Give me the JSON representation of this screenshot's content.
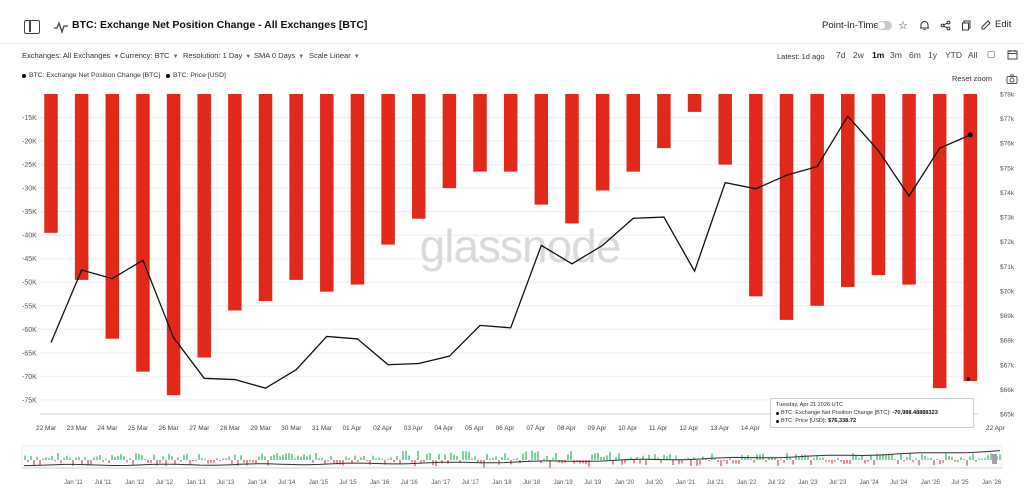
{
  "header": {
    "title": "BTC: Exchange Net Position Change - All Exchanges [BTC]",
    "point_in_time_label": "Point-In-Time",
    "edit_label": "Edit"
  },
  "controls": {
    "exchanges": "Exchanges: All Exchanges",
    "currency": "Currency: BTC",
    "resolution": "Resolution: 1 Day",
    "sma": "SMA 0 Days",
    "scale": "Scale Linear",
    "latest": "Latest: 1d ago",
    "ranges": [
      "7d",
      "2w",
      "1m",
      "3m",
      "6m",
      "1y",
      "YTD",
      "All"
    ],
    "active_range": "1m"
  },
  "legend": {
    "series1": "BTC: Exchange Net Position Change [BTC]",
    "series2": "BTC: Price [USD]"
  },
  "reset_zoom": "Reset zoom",
  "watermark": "glassnode",
  "tooltip": {
    "date": "Tuesday, Apr 21 2026 UTC",
    "row1_label": "BTC: Exchange Net Position Change [BTC]:",
    "row1_value": "-70,988.48888323",
    "row2_label": "BTC: Price [USD]:",
    "row2_value": "$76,338.72"
  },
  "colors": {
    "bar": "#e0291b",
    "line": "#111111",
    "grid": "#eceef1",
    "navigator_pos": "#7ed39a",
    "navigator_neg": "#f08a8a"
  },
  "chart_data": {
    "type": "bar",
    "categories": [
      "22 Mar",
      "23 Mar",
      "24 Mar",
      "25 Mar",
      "26 Mar",
      "27 Mar",
      "28 Mar",
      "29 Mar",
      "30 Mar",
      "31 Mar",
      "01 Apr",
      "02 Apr",
      "03 Apr",
      "04 Apr",
      "05 Apr",
      "06 Apr",
      "07 Apr",
      "08 Apr",
      "09 Apr",
      "10 Apr",
      "11 Apr",
      "12 Apr",
      "13 Apr",
      "14 Apr",
      "15 Apr",
      "16 Apr",
      "17 Apr",
      "18 Apr",
      "19 Apr",
      "20 Apr",
      "21 Apr",
      "22 Apr"
    ],
    "x_tick_labels": [
      "22 Mar",
      "23 Mar",
      "24 Mar",
      "25 Mar",
      "26 Mar",
      "27 Mar",
      "28 Mar",
      "29 Mar",
      "30 Mar",
      "31 Mar",
      "01 Apr",
      "02 Apr",
      "03 Apr",
      "04 Apr",
      "05 Apr",
      "06 Apr",
      "07 Apr",
      "08 Apr",
      "09 Apr",
      "10 Apr",
      "11 Apr",
      "12 Apr",
      "13 Apr",
      "14 Apr",
      "",
      "",
      "",
      "",
      "",
      "",
      "",
      "22 Apr"
    ],
    "series": [
      {
        "name": "BTC: Exchange Net Position Change [BTC]",
        "type": "bar",
        "axis": "left",
        "values": [
          -39.5,
          -49.5,
          -62,
          -69,
          -74,
          -66,
          -56,
          -54,
          -49.5,
          -52,
          -50.5,
          -42,
          -36.5,
          -30,
          -26.5,
          -26.5,
          -33.5,
          -37.5,
          -30.5,
          -26.5,
          -21.5,
          -13.8,
          -25,
          -53,
          -58,
          -55,
          -51,
          -48.5,
          -50.5,
          -72.5,
          -71,
          null
        ]
      },
      {
        "name": "BTC: Price [USD]",
        "type": "line",
        "axis": "right",
        "values": [
          67900,
          70850,
          70500,
          71250,
          68100,
          66450,
          66400,
          66050,
          66800,
          68150,
          68050,
          67000,
          67050,
          67350,
          68600,
          68500,
          71850,
          71100,
          71850,
          72950,
          73000,
          70800,
          74400,
          74150,
          74700,
          75050,
          77100,
          75700,
          73850,
          75800,
          76338.72,
          null
        ]
      }
    ],
    "y_left": {
      "label": "",
      "ticks": [
        "-15K",
        "-20K",
        "-25K",
        "-30K",
        "-35K",
        "-40K",
        "-45K",
        "-50K",
        "-55K",
        "-60K",
        "-65K",
        "-70K",
        "-75K"
      ],
      "range": [
        -78,
        -10
      ]
    },
    "y_right": {
      "label": "",
      "ticks": [
        "$78k",
        "$77k",
        "$76k",
        "$75k",
        "$74k",
        "$73k",
        "$72k",
        "$71k",
        "$70k",
        "$69k",
        "$68k",
        "$67k",
        "$66k",
        "$65k"
      ],
      "range": [
        65000,
        78000
      ]
    },
    "navigator": {
      "tick_labels": [
        "Jan '11",
        "Jul '11",
        "Jan '12",
        "Jul '12",
        "Jan '13",
        "Jul '13",
        "Jan '14",
        "Jul '14",
        "Jan '15",
        "Jul '15",
        "Jan '16",
        "Jul '16",
        "Jan '17",
        "Jul '17",
        "Jan '18",
        "Jul '18",
        "Jan '19",
        "Jul '19",
        "Jan '20",
        "Jul '20",
        "Jan '21",
        "Jul '21",
        "Jan '22",
        "Jul '22",
        "Jan '23",
        "Jul '23",
        "Jan '24",
        "Jul '24",
        "Jan '25",
        "Jul '25",
        "Jan '26"
      ]
    },
    "grid": true
  }
}
